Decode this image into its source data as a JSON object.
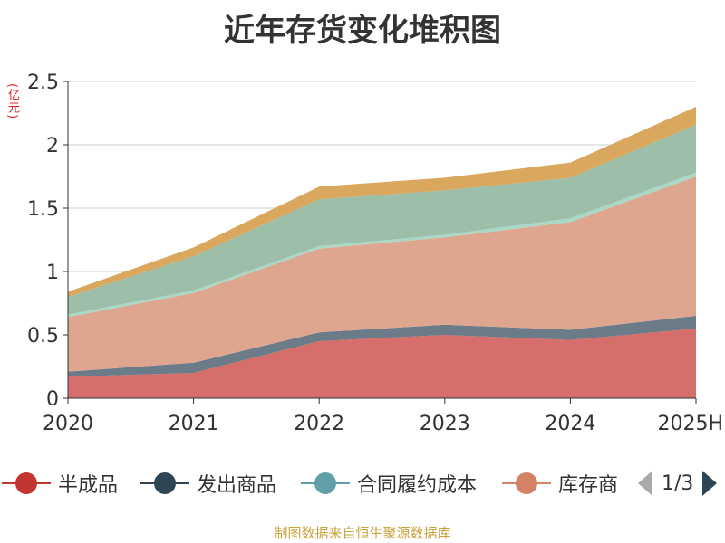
{
  "title": "近年存货变化堆积图",
  "unit": "(亿元)",
  "source": "制图数据来自恒生聚源数据库",
  "legend": {
    "items": [
      {
        "label": "半成品",
        "color": "#c23531"
      },
      {
        "label": "发出商品",
        "color": "#2f4554"
      },
      {
        "label": "合同履约成本",
        "color": "#61a0a8"
      },
      {
        "label": "库存商",
        "color": "#d48265"
      }
    ],
    "page": "1/3"
  },
  "chart_data": {
    "type": "area",
    "stacked": true,
    "categories": [
      "2020",
      "2021",
      "2022",
      "2023",
      "2024",
      "2025H"
    ],
    "y_ticks": [
      "0",
      "0.5",
      "1",
      "1.5",
      "2",
      "2.5"
    ],
    "ylim": [
      0,
      2.5
    ],
    "grid": true,
    "series": [
      {
        "name": "半成品",
        "color": "#d66f6b",
        "values": [
          0.17,
          0.2,
          0.45,
          0.5,
          0.46,
          0.55
        ]
      },
      {
        "name": "发出商品",
        "color": "#6b7b87",
        "values": [
          0.04,
          0.08,
          0.07,
          0.08,
          0.08,
          0.1
        ]
      },
      {
        "color": "#dfa68f",
        "values": [
          0.43,
          0.55,
          0.66,
          0.69,
          0.85,
          1.1
        ]
      },
      {
        "color": "#a9d8c6",
        "values": [
          0.02,
          0.02,
          0.02,
          0.02,
          0.03,
          0.03
        ]
      },
      {
        "color": "#9dbfaa",
        "values": [
          0.14,
          0.27,
          0.37,
          0.35,
          0.32,
          0.38
        ]
      },
      {
        "color": "#d9a75d",
        "values": [
          0.04,
          0.07,
          0.1,
          0.1,
          0.12,
          0.14
        ]
      }
    ]
  }
}
